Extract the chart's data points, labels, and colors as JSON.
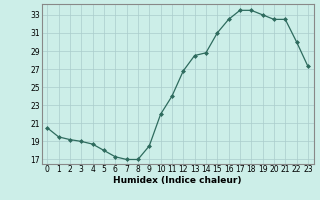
{
  "x": [
    0,
    1,
    2,
    3,
    4,
    5,
    6,
    7,
    8,
    9,
    10,
    11,
    12,
    13,
    14,
    15,
    16,
    17,
    18,
    19,
    20,
    21,
    22,
    23
  ],
  "y": [
    20.5,
    19.5,
    19.2,
    19.0,
    18.7,
    18.0,
    17.3,
    17.0,
    17.0,
    18.5,
    22.0,
    24.0,
    26.8,
    28.5,
    28.8,
    31.0,
    32.5,
    33.5,
    33.5,
    33.0,
    32.5,
    32.5,
    30.0,
    27.3
  ],
  "xlabel": "Humidex (Indice chaleur)",
  "xlim": [
    -0.5,
    23.5
  ],
  "ylim": [
    16.5,
    34.2
  ],
  "yticks": [
    17,
    19,
    21,
    23,
    25,
    27,
    29,
    31,
    33
  ],
  "xticks": [
    0,
    1,
    2,
    3,
    4,
    5,
    6,
    7,
    8,
    9,
    10,
    11,
    12,
    13,
    14,
    15,
    16,
    17,
    18,
    19,
    20,
    21,
    22,
    23
  ],
  "line_color": "#2e6b5e",
  "marker": "D",
  "marker_size": 2.0,
  "bg_color": "#cceee8",
  "grid_color": "#aacccc",
  "spine_color": "#888888",
  "tick_fontsize": 5.5,
  "xlabel_fontsize": 6.5
}
